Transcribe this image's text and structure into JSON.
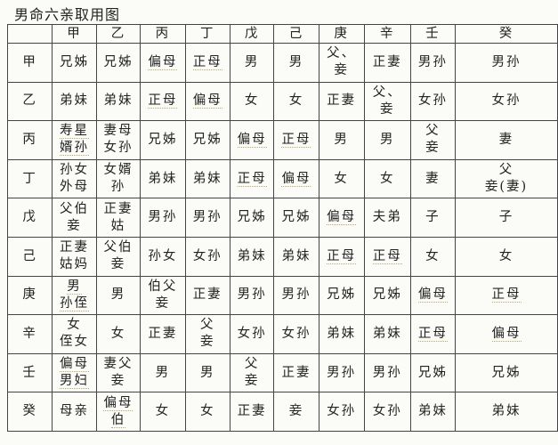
{
  "title": "男命六亲取用图",
  "columns": [
    "",
    "甲",
    "乙",
    "丙",
    "丁",
    "戊",
    "己",
    "庚",
    "辛",
    "壬",
    "癸"
  ],
  "rows": [
    {
      "stem": "甲",
      "cells": [
        "兄姊",
        "兄姊",
        "偏母",
        "正母",
        "男",
        "男",
        "父、\n妾",
        "正妻",
        "男孙",
        "男孙"
      ]
    },
    {
      "stem": "乙",
      "cells": [
        "弟妹",
        "弟妹",
        "正母",
        "偏母",
        "女",
        "女",
        "正妻",
        "父、\n妾",
        "女孙",
        "女孙"
      ]
    },
    {
      "stem": "丙",
      "cells": [
        "寿星\n婿孙",
        "妻母\n女孙",
        "兄姊",
        "兄姊",
        "偏母",
        "正母",
        "男",
        "男",
        "父\n妾",
        "妻"
      ]
    },
    {
      "stem": "丁",
      "cells": [
        "孙女\n外母",
        "女婿\n孙",
        "弟妹",
        "弟妹",
        "正母",
        "偏母",
        "女",
        "女",
        "妻",
        "父\n妾(妻)"
      ]
    },
    {
      "stem": "戊",
      "cells": [
        "父伯\n妾",
        "正妻\n姑",
        "男孙",
        "男孙",
        "兄姊",
        "兄姊",
        "偏母",
        "夫弟",
        "子",
        "子"
      ]
    },
    {
      "stem": "己",
      "cells": [
        "正妻\n姑妈",
        "父伯\n妾",
        "孙女",
        "女孙",
        "弟妹",
        "弟妹",
        "正母",
        "正母",
        "女",
        "女"
      ]
    },
    {
      "stem": "庚",
      "cells": [
        "男\n孙侄",
        "男",
        "伯父\n妾",
        "正妻",
        "男孙",
        "男孙",
        "兄姊",
        "兄姊",
        "偏母",
        "正母"
      ]
    },
    {
      "stem": "辛",
      "cells": [
        "女\n侄女",
        "女",
        "正妻",
        "父\n妾",
        "女孙",
        "女孙",
        "弟妹",
        "弟妹",
        "正母",
        "偏母"
      ]
    },
    {
      "stem": "壬",
      "cells": [
        "偏母\n男妇",
        "妻父\n妾",
        "男",
        "男",
        "父\n妾",
        "正妻",
        "男孙",
        "男孙",
        "兄姊",
        "兄姊"
      ]
    },
    {
      "stem": "癸",
      "cells": [
        "母亲",
        "偏母\n伯",
        "女",
        "女",
        "正妻",
        "妾",
        "女孙",
        "女孙",
        "弟妹",
        "弟妹"
      ]
    }
  ]
}
